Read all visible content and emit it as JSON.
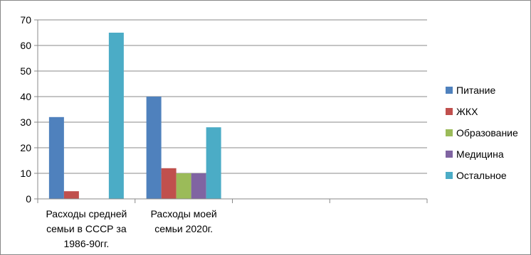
{
  "chart_data": {
    "type": "bar",
    "categories": [
      [
        "Расходы средней",
        "семьи в СССР за",
        "1986-90гг."
      ],
      [
        "Расходы моей",
        "семьи 2020г."
      ],
      [
        ""
      ],
      [
        ""
      ]
    ],
    "series": [
      {
        "name": "Питание",
        "color": "#4F81BD",
        "values": [
          32,
          40,
          null,
          null
        ]
      },
      {
        "name": "ЖКХ",
        "color": "#C0504D",
        "values": [
          3,
          12,
          null,
          null
        ]
      },
      {
        "name": "Образование",
        "color": "#9BBB59",
        "values": [
          0,
          10,
          null,
          null
        ]
      },
      {
        "name": "Медицина",
        "color": "#8064A2",
        "values": [
          0,
          10,
          null,
          null
        ]
      },
      {
        "name": "Остальное",
        "color": "#4BACC6",
        "values": [
          65,
          28,
          null,
          null
        ]
      }
    ],
    "ylim": [
      0,
      70
    ],
    "yticks": [
      0,
      10,
      20,
      30,
      40,
      50,
      60,
      70
    ],
    "grid": true,
    "legend_position": "right"
  }
}
